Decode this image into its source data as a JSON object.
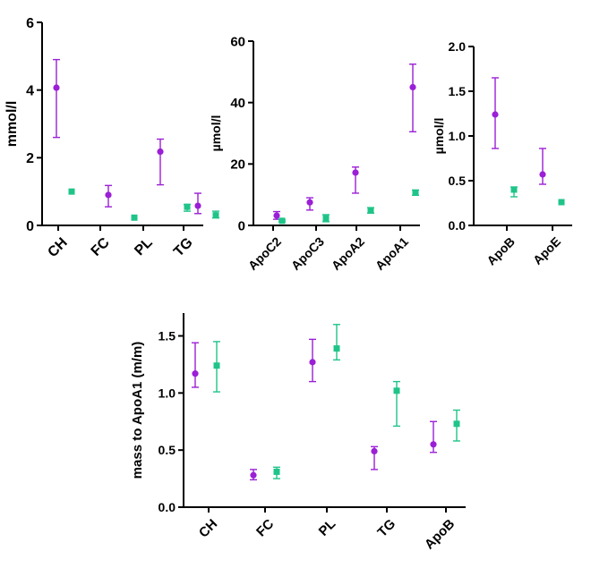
{
  "colors": {
    "series1": "#9b1fd6",
    "series2": "#1fc489"
  },
  "chart_data": [
    {
      "type": "scatter",
      "ylabel": "mmol/l",
      "ylim": [
        0,
        6
      ],
      "yticks": [
        0,
        2,
        4,
        6
      ],
      "categories": [
        "CH",
        "FC",
        "PL",
        "TG"
      ],
      "series": [
        {
          "name": "series1",
          "marker": "circle",
          "color": "#9b1fd6",
          "values": [
            4.07,
            0.9,
            2.18,
            0.58
          ],
          "lower": [
            2.6,
            0.55,
            1.2,
            0.35
          ],
          "upper": [
            4.9,
            1.18,
            2.55,
            0.95
          ]
        },
        {
          "name": "series2",
          "marker": "square",
          "color": "#1fc489",
          "values": [
            1.0,
            0.23,
            0.55,
            0.3
          ],
          "lower": [
            1.0,
            0.23,
            0.42,
            0.22
          ],
          "upper": [
            1.0,
            0.23,
            0.62,
            0.42
          ]
        }
      ]
    },
    {
      "type": "scatter",
      "ylabel": "µmol/l",
      "ylim": [
        0,
        60
      ],
      "yticks": [
        0,
        20,
        40,
        60
      ],
      "categories": [
        "ApoC2",
        "ApoC3",
        "ApoA2",
        "ApoA1"
      ],
      "series": [
        {
          "name": "series1",
          "marker": "circle",
          "color": "#9b1fd6",
          "values": [
            3.2,
            7.5,
            17.2,
            45.0
          ],
          "lower": [
            2.0,
            5.0,
            10.5,
            30.5
          ],
          "upper": [
            4.5,
            9.0,
            19.0,
            52.5
          ]
        },
        {
          "name": "series2",
          "marker": "square",
          "color": "#1fc489",
          "values": [
            1.5,
            2.3,
            4.8,
            10.7
          ],
          "lower": [
            1.2,
            1.2,
            4.0,
            9.8
          ],
          "upper": [
            1.8,
            3.5,
            5.8,
            11.5
          ]
        }
      ]
    },
    {
      "type": "scatter",
      "ylabel": "µmol/l",
      "ylim": [
        0,
        2.0
      ],
      "yticks": [
        0.0,
        0.5,
        1.0,
        1.5,
        2.0
      ],
      "yticklabels": [
        "0.0",
        "0.5",
        "1.0",
        "1.5",
        "2.0"
      ],
      "categories": [
        "ApoB",
        "ApoE"
      ],
      "series": [
        {
          "name": "series1",
          "marker": "circle",
          "color": "#9b1fd6",
          "values": [
            1.24,
            0.57
          ],
          "lower": [
            0.86,
            0.46
          ],
          "upper": [
            1.65,
            0.86
          ]
        },
        {
          "name": "series2",
          "marker": "square",
          "color": "#1fc489",
          "values": [
            0.4,
            0.26
          ],
          "lower": [
            0.32,
            0.26
          ],
          "upper": [
            0.43,
            0.26
          ]
        }
      ]
    },
    {
      "type": "scatter",
      "ylabel": "mass to ApoA1 (m/m)",
      "ylim": [
        0,
        1.7
      ],
      "yticks": [
        0.0,
        0.5,
        1.0,
        1.5
      ],
      "yticklabels": [
        "0.0",
        "0.5",
        "1.0",
        "1.5"
      ],
      "categories": [
        "CH",
        "FC",
        "PL",
        "TG",
        "ApoB"
      ],
      "series": [
        {
          "name": "series1",
          "marker": "circle",
          "color": "#9b1fd6",
          "values": [
            1.17,
            0.28,
            1.27,
            0.49,
            0.55
          ],
          "lower": [
            1.05,
            0.24,
            1.1,
            0.33,
            0.48
          ],
          "upper": [
            1.44,
            0.33,
            1.47,
            0.53,
            0.75
          ]
        },
        {
          "name": "series2",
          "marker": "square",
          "color": "#1fc489",
          "values": [
            1.24,
            0.31,
            1.39,
            1.02,
            0.73
          ],
          "lower": [
            1.01,
            0.25,
            1.29,
            0.71,
            0.58
          ],
          "upper": [
            1.45,
            0.35,
            1.6,
            1.1,
            0.85
          ]
        }
      ]
    }
  ]
}
